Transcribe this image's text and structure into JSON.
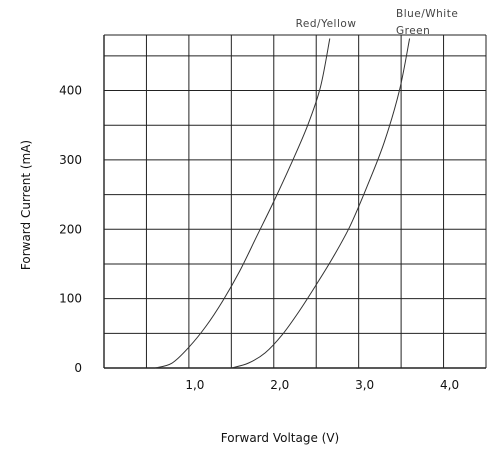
{
  "colors": {
    "background": "#ffffff",
    "grid": "#222222",
    "curve": "#333333",
    "text": "#111111"
  },
  "chart_data": {
    "type": "line",
    "title": "",
    "xlabel": "Forward Voltage (V)",
    "ylabel": "Forward Current (mA)",
    "xlim": [
      0,
      4.5
    ],
    "ylim": [
      0,
      480
    ],
    "x_ticks": [
      1.0,
      2.0,
      3.0,
      4.0
    ],
    "x_tick_labels": [
      "1,0",
      "2,0",
      "3,0",
      "4,0"
    ],
    "y_ticks": [
      0,
      100,
      200,
      300,
      400
    ],
    "y_tick_labels": [
      "0",
      "100",
      "200",
      "300",
      "400"
    ],
    "grid": true,
    "grid_x_step": 0.5,
    "grid_y_step": 50,
    "series": [
      {
        "name": "Red/Yellow",
        "x": [
          0.6,
          0.8,
          1.0,
          1.2,
          1.4,
          1.6,
          1.8,
          2.0,
          2.2,
          2.4,
          2.55,
          2.66
        ],
        "y": [
          0,
          7,
          30,
          60,
          97,
          140,
          190,
          240,
          293,
          350,
          405,
          475
        ]
      },
      {
        "name": "Blue/White",
        "label_line2": "Green",
        "x": [
          1.5,
          1.7,
          1.9,
          2.1,
          2.3,
          2.5,
          2.7,
          2.9,
          3.1,
          3.3,
          3.48,
          3.6
        ],
        "y": [
          0,
          7,
          22,
          48,
          82,
          120,
          160,
          205,
          262,
          325,
          400,
          475
        ]
      }
    ]
  }
}
